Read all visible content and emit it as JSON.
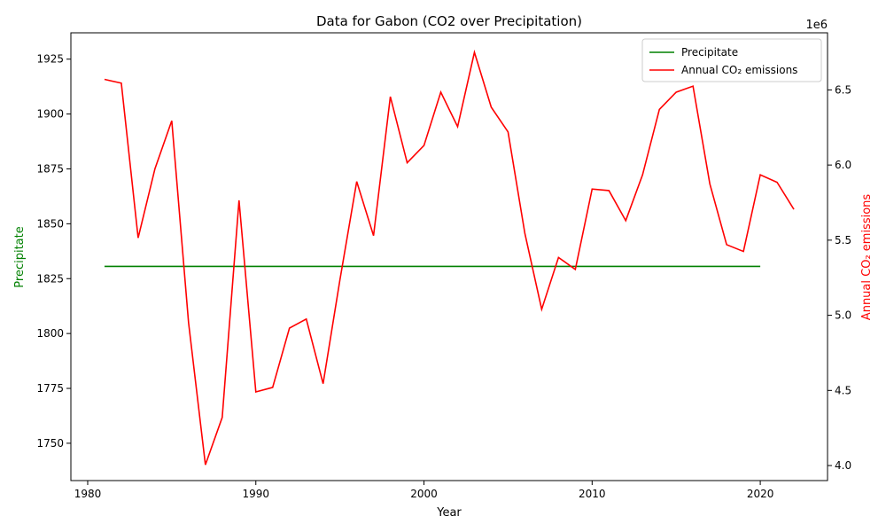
{
  "chart_data": {
    "type": "line",
    "title": "Data for Gabon (CO2 over Precipitation)",
    "xlabel": "Year",
    "ylabel_left": "Precipitate",
    "ylabel_right": "Annual CO₂ emissions",
    "right_axis_offset_label": "1e6",
    "xlim": [
      1979,
      2024
    ],
    "ylim_left": [
      1733,
      1937
    ],
    "ylim_right": [
      3900000,
      6880000
    ],
    "x_ticks": [
      1980,
      1990,
      2000,
      2010,
      2020
    ],
    "y_ticks_left": [
      1750,
      1775,
      1800,
      1825,
      1850,
      1875,
      1900,
      1925
    ],
    "y_ticks_right": [
      4.0,
      4.5,
      5.0,
      5.5,
      6.0,
      6.5
    ],
    "legend_position": "top-right",
    "grid": false,
    "series": [
      {
        "name": "Precipitate",
        "axis": "left",
        "color": "#008000",
        "x": [
          1981,
          2020
        ],
        "values": [
          1830.6,
          1830.6
        ]
      },
      {
        "name": "Annual CO₂ emissions",
        "axis": "right",
        "color": "#ff0000",
        "x": [
          1981,
          1982,
          1983,
          1984,
          1985,
          1986,
          1987,
          1988,
          1989,
          1990,
          1991,
          1992,
          1993,
          1994,
          1995,
          1996,
          1997,
          1998,
          1999,
          2000,
          2001,
          2002,
          2003,
          2004,
          2005,
          2006,
          2007,
          2008,
          2009,
          2010,
          2011,
          2012,
          2013,
          2014,
          2015,
          2016,
          2017,
          2018,
          2019,
          2020,
          2021,
          2022
        ],
        "values": [
          6570000,
          6545000,
          5515000,
          5975000,
          6295000,
          4950000,
          4005000,
          4320000,
          5765000,
          4490000,
          4520000,
          4915000,
          4975000,
          4545000,
          5235000,
          5890000,
          5530000,
          6455000,
          6015000,
          6130000,
          6485000,
          6255000,
          6750000,
          6385000,
          6220000,
          5545000,
          5040000,
          5385000,
          5305000,
          5840000,
          5830000,
          5630000,
          5935000,
          6370000,
          6485000,
          6525000,
          5875000,
          5470000,
          5425000,
          5935000,
          5885000,
          5705000
        ]
      }
    ]
  }
}
